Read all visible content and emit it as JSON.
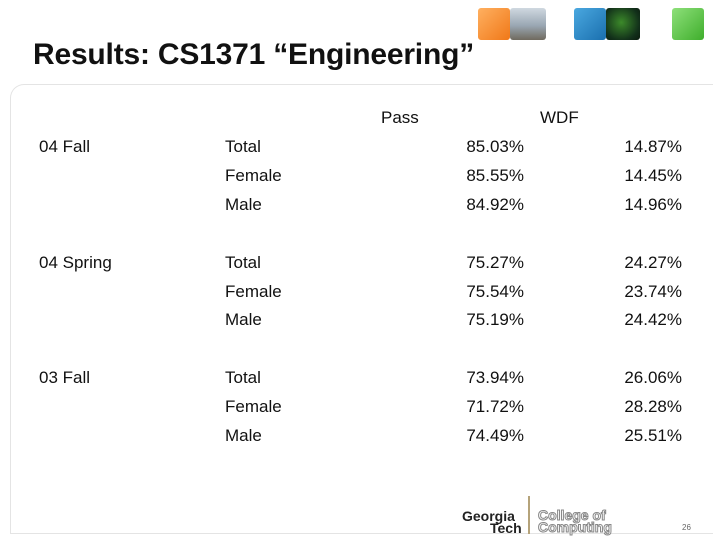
{
  "title": "Results: CS1371 “Engineering”",
  "columns": {
    "pass": "Pass",
    "wdf": "WDF"
  },
  "groups": [
    {
      "term": "04 Fall",
      "rows": [
        {
          "label": "Total",
          "pass": "85.03%",
          "wdf": "14.87%"
        },
        {
          "label": "Female",
          "pass": "85.55%",
          "wdf": "14.45%"
        },
        {
          "label": "Male",
          "pass": "84.92%",
          "wdf": "14.96%"
        }
      ]
    },
    {
      "term": "04 Spring",
      "rows": [
        {
          "label": "Total",
          "pass": "75.27%",
          "wdf": "24.27%"
        },
        {
          "label": "Female",
          "pass": "75.54%",
          "wdf": "23.74%"
        },
        {
          "label": "Male",
          "pass": "75.19%",
          "wdf": "24.42%"
        }
      ]
    },
    {
      "term": "03 Fall",
      "rows": [
        {
          "label": "Total",
          "pass": "73.94%",
          "wdf": "26.06%"
        },
        {
          "label": "Female",
          "pass": "71.72%",
          "wdf": "28.28%"
        },
        {
          "label": "Male",
          "pass": "74.49%",
          "wdf": "25.51%"
        }
      ]
    }
  ],
  "logo": {
    "line1": "Georgia",
    "line2": "Tech",
    "line3": "College of",
    "line4": "Computing"
  },
  "page_number": "26"
}
